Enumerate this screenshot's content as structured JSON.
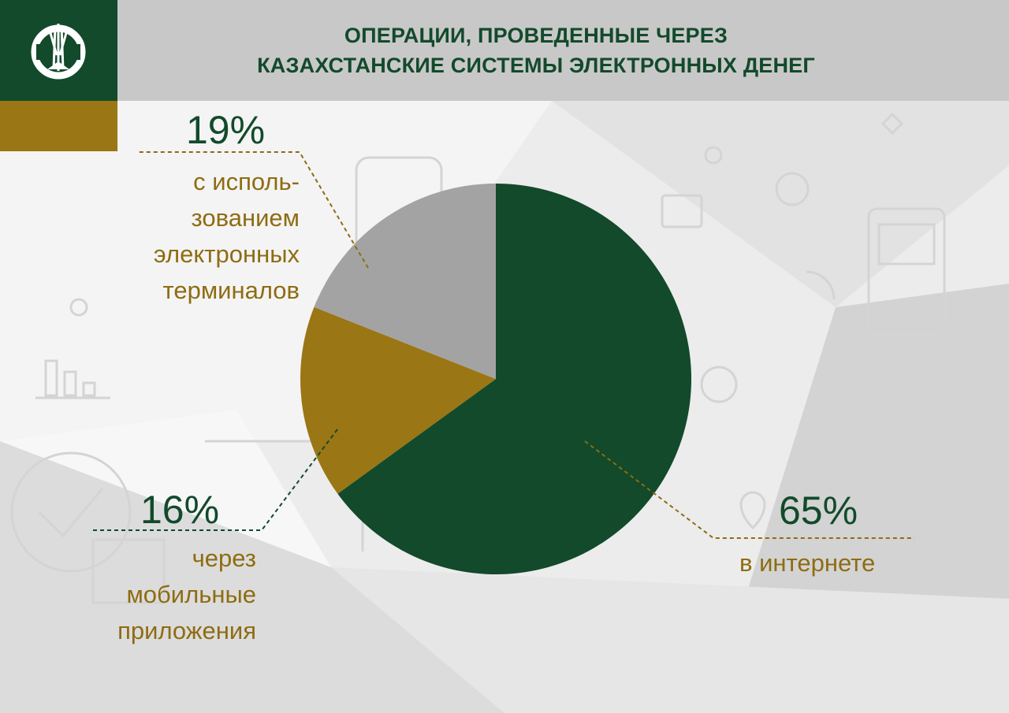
{
  "header": {
    "title_lines": [
      "ОПЕРАЦИИ, ПРОВЕДЕННЫЕ ЧЕРЕЗ",
      "КАЗАХСТАНСКИЕ СИСТЕМЫ ЭЛЕКТРОННЫХ ДЕНЕГ"
    ]
  },
  "colors": {
    "brand_green": "#124a2b",
    "brand_gold": "#9a7615",
    "header_gray": "#c9c8c8",
    "slice_gray": "#a3a3a3"
  },
  "chart_data": {
    "type": "pie",
    "title": "ОПЕРАЦИИ, ПРОВЕДЕННЫЕ ЧЕРЕЗ КАЗАХСТАНСКИЕ СИСТЕМЫ ЭЛЕКТРОННЫХ ДЕНЕГ",
    "slices": [
      {
        "value": 65,
        "label": "65%",
        "description_lines": [
          "в интернете"
        ],
        "color": "#124a2b"
      },
      {
        "value": 16,
        "label": "16%",
        "description_lines": [
          "через",
          "мобильные",
          "приложения"
        ],
        "color": "#9a7615"
      },
      {
        "value": 19,
        "label": "19%",
        "description_lines": [
          "с исполь-",
          "зованием",
          "электронных",
          "терминалов"
        ],
        "color": "#a3a3a3"
      }
    ],
    "start": "12 o'clock, clockwise"
  }
}
